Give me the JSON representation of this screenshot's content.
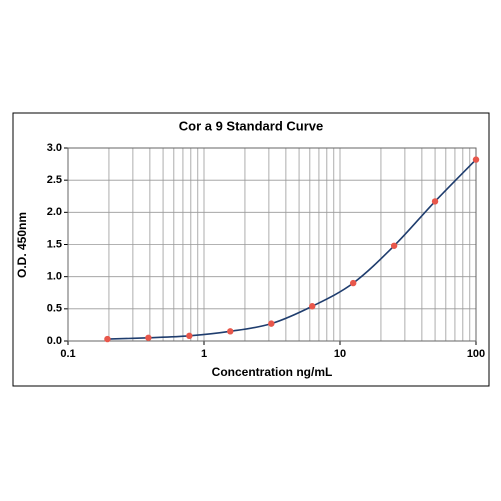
{
  "chart_data": {
    "type": "line",
    "title": "Cor a 9 Standard Curve",
    "x_label": "Concentration ng/mL",
    "y_label": "O.D. 450nm",
    "x_scale": "log",
    "grid": true,
    "minor_grid": true,
    "xlim": [
      0.1,
      100
    ],
    "xticks": [
      0.1,
      1,
      10,
      100
    ],
    "ylim": [
      0,
      3.0
    ],
    "yticks": [
      {
        "value": 0,
        "label": "0.0"
      },
      0.5,
      {
        "value": 1,
        "label": "1.0"
      },
      1.5,
      {
        "value": 2,
        "label": "2.0"
      },
      2.5,
      {
        "value": 3,
        "label": "3.0"
      }
    ],
    "x": [
      0.195,
      0.39,
      0.78,
      1.56,
      3.125,
      6.25,
      12.5,
      25,
      50,
      100
    ],
    "series": [
      {
        "color": "#e8574b",
        "line_color": "#1f3d6e",
        "values": [
          0.03,
          0.05,
          0.08,
          0.15,
          0.27,
          0.54,
          0.9,
          1.48,
          2.17,
          2.82
        ]
      }
    ]
  }
}
